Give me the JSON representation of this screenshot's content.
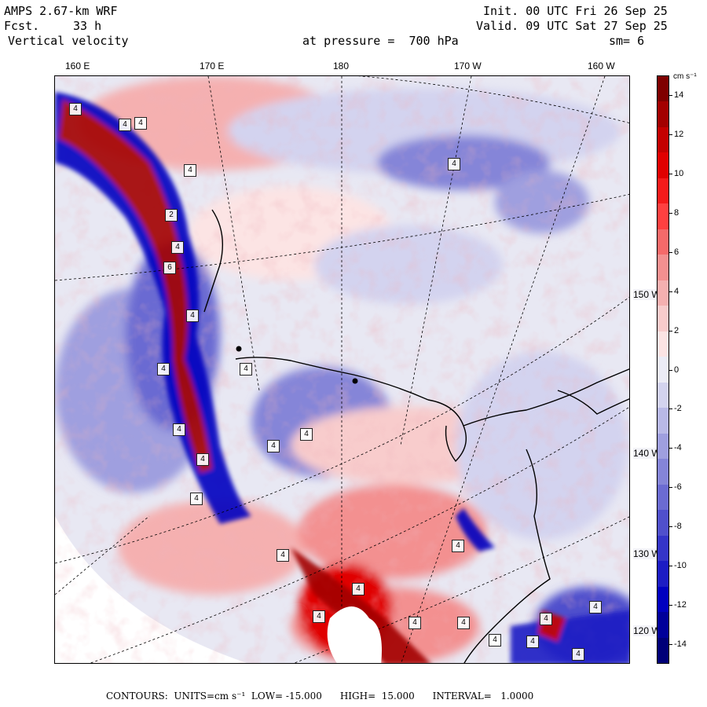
{
  "header": {
    "model": "AMPS 2.67-km WRF",
    "forecast_label": "Fcst.",
    "forecast_hours": "33 h",
    "field": "Vertical velocity",
    "init": "Init. 00 UTC Fri 26 Sep 25",
    "valid": "Valid. 09 UTC Sat 27 Sep 25",
    "level": "at pressure =  700 hPa",
    "smoothing": "sm= 6"
  },
  "longitude_labels": [
    "160 E",
    "170 E",
    "180",
    "170 W",
    "160 W"
  ],
  "latitude_labels": [
    "150 W",
    "140 W",
    "130 W",
    "120 W"
  ],
  "colorbar": {
    "unit": "cm s⁻¹",
    "ticks": [
      "14",
      "12",
      "10",
      "8",
      "6",
      "4",
      "2",
      "0",
      "-2",
      "-4",
      "-6",
      "-8",
      "-10",
      "-12",
      "-14"
    ],
    "colors": [
      "#7f0000",
      "#a30000",
      "#c40000",
      "#e00000",
      "#f41a1a",
      "#ff4040",
      "#f56a6a",
      "#f39090",
      "#f5b0b0",
      "#f8cccc",
      "#fce4e4",
      "#ececf6",
      "#d3d3ef",
      "#b9b9e7",
      "#9f9fdf",
      "#8585d8",
      "#6b6bd2",
      "#5050cc",
      "#3535c8",
      "#1c1cc4",
      "#0000c0",
      "#00009a",
      "#000078"
    ],
    "accent_red": "#c40000",
    "accent_blue": "#0000c0"
  },
  "map": {
    "background": "#e8e8f3",
    "box_labels": [
      "4",
      "4",
      "4",
      "4",
      "2",
      "4",
      "6",
      "4",
      "4",
      "4",
      "4",
      "4",
      "4",
      "4",
      "4",
      "4",
      "4",
      "4",
      "4",
      "4",
      "4",
      "4",
      "4",
      "4",
      "4",
      "4",
      "4"
    ]
  },
  "footer": {
    "text": "CONTOURS:  UNITS=cm s⁻¹  LOW= -15.000      HIGH=  15.000      INTERVAL=   1.0000"
  }
}
